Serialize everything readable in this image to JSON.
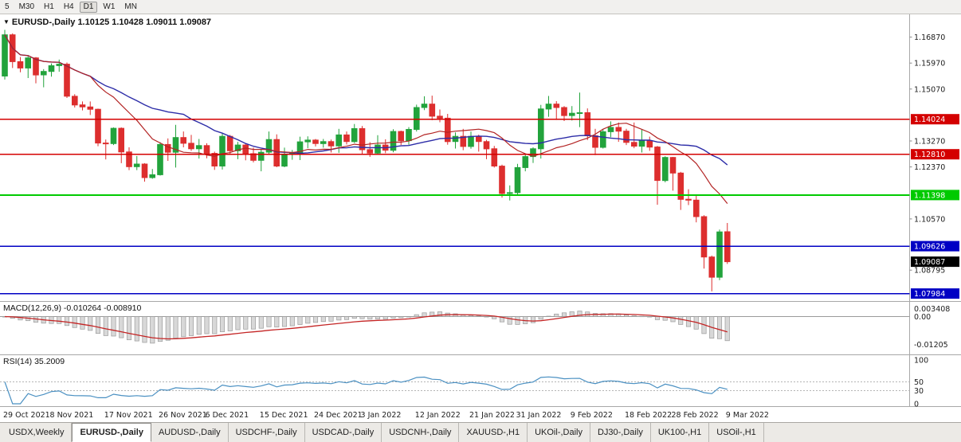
{
  "toolbar": {
    "timeframes": [
      "5",
      "M30",
      "H1",
      "H4",
      "D1",
      "W1",
      "MN"
    ],
    "active": "D1"
  },
  "chart_title": {
    "dropdown_icon": "▼",
    "text": "EURUSD-,Daily 1.10125 1.10428 1.09011 1.09087"
  },
  "chart_data": {
    "type": "candlestick",
    "symbol": "EURUSD-",
    "timeframe": "Daily",
    "ohlc_display": {
      "open": "1.10125",
      "high": "1.10428",
      "low": "1.09011",
      "close": "1.09087"
    },
    "colors": {
      "candle_up": "#22a33c",
      "candle_down": "#dd2e2e",
      "ma_fast": "#b32424",
      "ma_slow": "#2d2da8",
      "macd_signal": "#c42525",
      "macd_hist_fill": "#d8d8d8",
      "macd_hist_stroke": "#9a9a9a",
      "rsi": "#4a90c2"
    },
    "price_axis_ticks": [
      "1.16870",
      "1.15970",
      "1.15070",
      "1.13270",
      "1.12370",
      "1.10570",
      "1.08795"
    ],
    "hlines": [
      {
        "value": 1.14024,
        "label": "1.14024",
        "color": "#d40000",
        "width": 1.4
      },
      {
        "value": 1.1281,
        "label": "1.12810",
        "color": "#d40000",
        "width": 1.4
      },
      {
        "value": 1.11398,
        "label": "1.11398",
        "color": "#00ca00",
        "width": 2
      },
      {
        "value": 1.09626,
        "label": "1.09626",
        "color": "#0000c4",
        "width": 1.6
      },
      {
        "value": 1.07984,
        "label": "1.07984",
        "color": "#0000c4",
        "width": 1.6
      }
    ],
    "current_price": "1.09087",
    "x_labels": [
      {
        "bar": 0,
        "text": "29 Oct 2021"
      },
      {
        "bar": 6,
        "text": "8 Nov 2021"
      },
      {
        "bar": 13,
        "text": "17 Nov 2021"
      },
      {
        "bar": 20,
        "text": "26 Nov 2021"
      },
      {
        "bar": 26,
        "text": "6 Dec 2021"
      },
      {
        "bar": 33,
        "text": "15 Dec 2021"
      },
      {
        "bar": 40,
        "text": "24 Dec 2021"
      },
      {
        "bar": 46,
        "text": "3 Jan 2022"
      },
      {
        "bar": 53,
        "text": "12 Jan 2022"
      },
      {
        "bar": 60,
        "text": "21 Jan 2022"
      },
      {
        "bar": 66,
        "text": "31 Jan 2022"
      },
      {
        "bar": 73,
        "text": "9 Feb 2022"
      },
      {
        "bar": 80,
        "text": "18 Feb 2022"
      },
      {
        "bar": 86,
        "text": "28 Feb 2022"
      },
      {
        "bar": 93,
        "text": "9 Mar 2022"
      }
    ],
    "candles_ohlc": [
      [
        1.1552,
        1.1712,
        1.154,
        1.1695
      ],
      [
        1.1695,
        1.17,
        1.158,
        1.1602
      ],
      [
        1.1602,
        1.1618,
        1.1565,
        1.158
      ],
      [
        1.158,
        1.1622,
        1.1545,
        1.1615
      ],
      [
        1.1615,
        1.1618,
        1.1527,
        1.1556
      ],
      [
        1.1556,
        1.1576,
        1.1513,
        1.1568
      ],
      [
        1.1568,
        1.1596,
        1.155,
        1.1588
      ],
      [
        1.1588,
        1.1609,
        1.1567,
        1.1593
      ],
      [
        1.1593,
        1.1599,
        1.1476,
        1.1482
      ],
      [
        1.1482,
        1.1489,
        1.1443,
        1.1452
      ],
      [
        1.1452,
        1.1464,
        1.1433,
        1.1445
      ],
      [
        1.1445,
        1.1464,
        1.1417,
        1.1437
      ],
      [
        1.1437,
        1.1439,
        1.1309,
        1.132
      ],
      [
        1.132,
        1.1332,
        1.1263,
        1.1318
      ],
      [
        1.1318,
        1.1374,
        1.1313,
        1.1371
      ],
      [
        1.1371,
        1.1374,
        1.125,
        1.1289
      ],
      [
        1.1289,
        1.1305,
        1.1226,
        1.1238
      ],
      [
        1.1238,
        1.1275,
        1.1226,
        1.1247
      ],
      [
        1.1247,
        1.125,
        1.1186,
        1.12
      ],
      [
        1.12,
        1.123,
        1.1196,
        1.121
      ],
      [
        1.121,
        1.1323,
        1.1207,
        1.1315
      ],
      [
        1.1315,
        1.1336,
        1.1258,
        1.1288
      ],
      [
        1.1288,
        1.1383,
        1.1235,
        1.1339
      ],
      [
        1.1339,
        1.136,
        1.1305,
        1.1319
      ],
      [
        1.1319,
        1.1348,
        1.1293,
        1.13
      ],
      [
        1.13,
        1.1334,
        1.1266,
        1.1311
      ],
      [
        1.1311,
        1.1319,
        1.1267,
        1.1284
      ],
      [
        1.1284,
        1.129,
        1.1227,
        1.124
      ],
      [
        1.124,
        1.1355,
        1.1228,
        1.1343
      ],
      [
        1.1343,
        1.1348,
        1.128,
        1.1293
      ],
      [
        1.1293,
        1.1324,
        1.1264,
        1.1313
      ],
      [
        1.1313,
        1.132,
        1.126,
        1.1283
      ],
      [
        1.1283,
        1.1304,
        1.1253,
        1.126
      ],
      [
        1.126,
        1.1298,
        1.1222,
        1.1288
      ],
      [
        1.1288,
        1.136,
        1.1282,
        1.1332
      ],
      [
        1.1332,
        1.135,
        1.1236,
        1.124
      ],
      [
        1.124,
        1.1304,
        1.1236,
        1.1281
      ],
      [
        1.1281,
        1.1296,
        1.1262,
        1.1287
      ],
      [
        1.1287,
        1.1342,
        1.1261,
        1.1324
      ],
      [
        1.1324,
        1.1343,
        1.1302,
        1.133
      ],
      [
        1.133,
        1.1334,
        1.1308,
        1.1318
      ],
      [
        1.1318,
        1.1334,
        1.1304,
        1.1325
      ],
      [
        1.1325,
        1.1332,
        1.1287,
        1.131
      ],
      [
        1.131,
        1.1369,
        1.1286,
        1.1348
      ],
      [
        1.1348,
        1.136,
        1.1315,
        1.1325
      ],
      [
        1.1325,
        1.1386,
        1.132,
        1.137
      ],
      [
        1.137,
        1.1379,
        1.1279,
        1.1297
      ],
      [
        1.1297,
        1.1323,
        1.1272,
        1.1285
      ],
      [
        1.1285,
        1.1347,
        1.128,
        1.1313
      ],
      [
        1.1313,
        1.1333,
        1.1285,
        1.1295
      ],
      [
        1.1295,
        1.1368,
        1.1288,
        1.136
      ],
      [
        1.136,
        1.1363,
        1.1313,
        1.1328
      ],
      [
        1.1328,
        1.1375,
        1.1314,
        1.1367
      ],
      [
        1.1367,
        1.1453,
        1.136,
        1.1443
      ],
      [
        1.1443,
        1.1482,
        1.1434,
        1.1455
      ],
      [
        1.1455,
        1.1484,
        1.1399,
        1.1413
      ],
      [
        1.1413,
        1.1436,
        1.1392,
        1.1406
      ],
      [
        1.1406,
        1.1421,
        1.1314,
        1.1325
      ],
      [
        1.1325,
        1.1357,
        1.1301,
        1.1343
      ],
      [
        1.1343,
        1.1369,
        1.1295,
        1.1308
      ],
      [
        1.1308,
        1.136,
        1.13,
        1.1343
      ],
      [
        1.1343,
        1.1349,
        1.129,
        1.1325
      ],
      [
        1.1325,
        1.1331,
        1.1264,
        1.13
      ],
      [
        1.13,
        1.131,
        1.1235,
        1.124
      ],
      [
        1.124,
        1.1245,
        1.1131,
        1.1145
      ],
      [
        1.1145,
        1.1173,
        1.1121,
        1.1148
      ],
      [
        1.1148,
        1.1248,
        1.1141,
        1.1235
      ],
      [
        1.1235,
        1.1279,
        1.1222,
        1.1273
      ],
      [
        1.1273,
        1.1305,
        1.1251,
        1.13
      ],
      [
        1.13,
        1.1452,
        1.1266,
        1.1438
      ],
      [
        1.1438,
        1.1483,
        1.1411,
        1.1455
      ],
      [
        1.1455,
        1.1465,
        1.14,
        1.1443
      ],
      [
        1.1443,
        1.1448,
        1.1396,
        1.1415
      ],
      [
        1.1415,
        1.1448,
        1.1398,
        1.1423
      ],
      [
        1.1423,
        1.1495,
        1.1375,
        1.1425
      ],
      [
        1.1425,
        1.144,
        1.133,
        1.1345
      ],
      [
        1.1345,
        1.1369,
        1.1278,
        1.1305
      ],
      [
        1.1305,
        1.1368,
        1.1301,
        1.1359
      ],
      [
        1.1359,
        1.1395,
        1.134,
        1.1374
      ],
      [
        1.1374,
        1.1391,
        1.1324,
        1.1361
      ],
      [
        1.1361,
        1.1369,
        1.1313,
        1.1322
      ],
      [
        1.1322,
        1.1391,
        1.1302,
        1.1309
      ],
      [
        1.1309,
        1.1368,
        1.1287,
        1.1328
      ],
      [
        1.1328,
        1.1342,
        1.1293,
        1.1306
      ],
      [
        1.1306,
        1.131,
        1.1106,
        1.119
      ],
      [
        1.119,
        1.1274,
        1.1184,
        1.127
      ],
      [
        1.127,
        1.1272,
        1.1155,
        1.1216
      ],
      [
        1.1216,
        1.122,
        1.1088,
        1.1125
      ],
      [
        1.1125,
        1.116,
        1.1105,
        1.1122
      ],
      [
        1.1122,
        1.114,
        1.1045,
        1.1065
      ],
      [
        1.1065,
        1.107,
        1.0885,
        1.0925
      ],
      [
        1.0925,
        1.093,
        1.0806,
        1.0855
      ],
      [
        1.0855,
        1.102,
        1.0845,
        1.1012
      ],
      [
        1.10125,
        1.10428,
        1.09011,
        1.09087
      ]
    ],
    "indicators": {
      "ma_fast": {
        "type": "sma",
        "period": 12,
        "color": "#b32424"
      },
      "ma_slow": {
        "type": "sma",
        "period": 24,
        "color": "#2d2da8"
      },
      "macd": {
        "label_text": "MACD(12,26,9) -0.010264 -0.008910",
        "fast": 12,
        "slow": 26,
        "signal": 9,
        "value": "-0.010264",
        "signal_value": "-0.008910",
        "axis_labels": [
          {
            "v": 0.003408,
            "text": "0.003408"
          },
          {
            "v": 0,
            "text": "0.00"
          },
          {
            "v": -0.01205,
            "text": "-0.01205"
          }
        ]
      },
      "rsi": {
        "label_text": "RSI(14) 35.2009",
        "period": 14,
        "value": "35.2009",
        "levels": [
          50,
          30
        ],
        "axis_labels": [
          {
            "v": 100,
            "text": "100"
          },
          {
            "v": 50,
            "text": "50"
          },
          {
            "v": 30,
            "text": "30"
          },
          {
            "v": 0,
            "text": "0"
          }
        ]
      }
    }
  },
  "bottom_tabs": [
    {
      "label": "USDX,Weekly",
      "active": false
    },
    {
      "label": "EURUSD-,Daily",
      "active": true
    },
    {
      "label": "AUDUSD-,Daily",
      "active": false
    },
    {
      "label": "USDCHF-,Daily",
      "active": false
    },
    {
      "label": "USDCAD-,Daily",
      "active": false
    },
    {
      "label": "USDCNH-,Daily",
      "active": false
    },
    {
      "label": "XAUUSD-,H1",
      "active": false
    },
    {
      "label": "UKOil-,Daily",
      "active": false
    },
    {
      "label": "DJ30-,Daily",
      "active": false
    },
    {
      "label": "UK100-,H1",
      "active": false
    },
    {
      "label": "USOil-,H1",
      "active": false
    }
  ]
}
